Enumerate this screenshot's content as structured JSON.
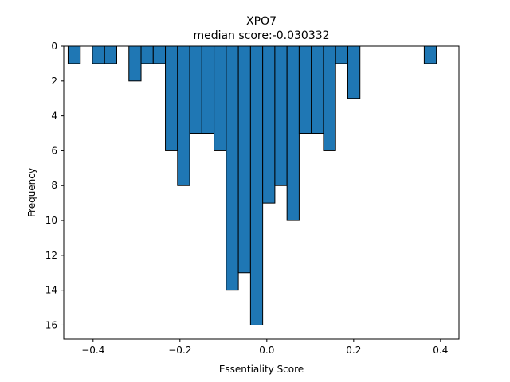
{
  "chart_data": {
    "type": "bar",
    "title": "XPO7",
    "subtitle": "median score:-0.030332",
    "xlabel": "Essentiality Score",
    "ylabel": "Frequency",
    "xlim": [
      -0.4675,
      0.4425
    ],
    "ylim": [
      16.8,
      0
    ],
    "y_inverted": true,
    "grid": false,
    "bar_color": "#1f77b4",
    "edge_color": "#000000",
    "x_ticks": [
      -0.4,
      -0.2,
      0.0,
      0.2,
      0.4
    ],
    "x_tick_labels": [
      "−0.4",
      "−0.2",
      "0.0",
      "0.2",
      "0.4"
    ],
    "y_ticks": [
      0,
      2,
      4,
      6,
      8,
      10,
      12,
      14,
      16
    ],
    "y_tick_labels": [
      "0",
      "2",
      "4",
      "6",
      "8",
      "10",
      "12",
      "14",
      "16"
    ],
    "bins": [
      {
        "x0": -0.4575,
        "x1": -0.4295,
        "count": 1
      },
      {
        "x0": -0.4295,
        "x1": -0.4015,
        "count": 0
      },
      {
        "x0": -0.4015,
        "x1": -0.3735,
        "count": 1
      },
      {
        "x0": -0.3735,
        "x1": -0.3455,
        "count": 1
      },
      {
        "x0": -0.3455,
        "x1": -0.3175,
        "count": 0
      },
      {
        "x0": -0.3175,
        "x1": -0.2895,
        "count": 2
      },
      {
        "x0": -0.2895,
        "x1": -0.2615,
        "count": 1
      },
      {
        "x0": -0.2615,
        "x1": -0.2335,
        "count": 1
      },
      {
        "x0": -0.2335,
        "x1": -0.2055,
        "count": 6
      },
      {
        "x0": -0.2055,
        "x1": -0.1775,
        "count": 8
      },
      {
        "x0": -0.1775,
        "x1": -0.1495,
        "count": 5
      },
      {
        "x0": -0.1495,
        "x1": -0.1215,
        "count": 5
      },
      {
        "x0": -0.1215,
        "x1": -0.0935,
        "count": 6
      },
      {
        "x0": -0.0935,
        "x1": -0.0655,
        "count": 14
      },
      {
        "x0": -0.0655,
        "x1": -0.0375,
        "count": 13
      },
      {
        "x0": -0.0375,
        "x1": -0.0095,
        "count": 16
      },
      {
        "x0": -0.0095,
        "x1": 0.0185,
        "count": 9
      },
      {
        "x0": 0.0185,
        "x1": 0.0465,
        "count": 8
      },
      {
        "x0": 0.0465,
        "x1": 0.0745,
        "count": 10
      },
      {
        "x0": 0.0745,
        "x1": 0.1025,
        "count": 5
      },
      {
        "x0": 0.1025,
        "x1": 0.1305,
        "count": 5
      },
      {
        "x0": 0.1305,
        "x1": 0.1585,
        "count": 6
      },
      {
        "x0": 0.1585,
        "x1": 0.1865,
        "count": 1
      },
      {
        "x0": 0.1865,
        "x1": 0.2145,
        "count": 3
      },
      {
        "x0": 0.3625,
        "x1": 0.3905,
        "count": 1
      }
    ]
  }
}
